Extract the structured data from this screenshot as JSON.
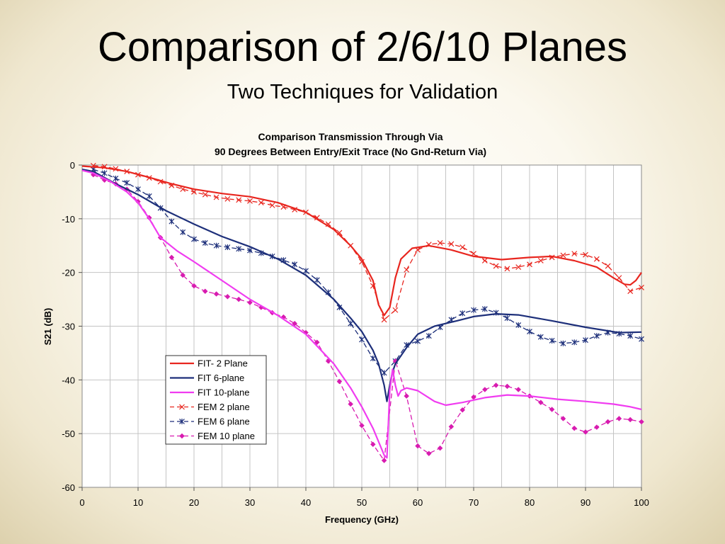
{
  "slide": {
    "title": "Comparison of 2/6/10 Planes",
    "subtitle": "Two Techniques for Validation"
  },
  "chart_data": {
    "type": "line",
    "title": "Comparison Transmission Through Via",
    "subtitle": "90 Degrees Between Entry/Exit Trace (No Gnd-Return Via)",
    "xlabel": "Frequency (GHz)",
    "ylabel": "S21 (dB)",
    "xlim": [
      0,
      100
    ],
    "ylim": [
      -60,
      0
    ],
    "xticks": [
      0,
      10,
      20,
      30,
      40,
      50,
      60,
      70,
      80,
      90,
      100
    ],
    "yticks": [
      0,
      -10,
      -20,
      -30,
      -40,
      -50,
      -60
    ],
    "grid": true,
    "legend_position": "lower-left inside plot",
    "series": [
      {
        "name": "FIT- 2 Plane",
        "color": "#e8261f",
        "style": "solid",
        "marker": "none",
        "points": [
          [
            0,
            -0.2
          ],
          [
            4,
            -0.5
          ],
          [
            8,
            -1.2
          ],
          [
            12,
            -2.3
          ],
          [
            16,
            -3.5
          ],
          [
            20,
            -4.5
          ],
          [
            25,
            -5.3
          ],
          [
            30,
            -5.9
          ],
          [
            35,
            -7
          ],
          [
            40,
            -8.8
          ],
          [
            45,
            -12
          ],
          [
            48,
            -15
          ],
          [
            50,
            -17.5
          ],
          [
            52,
            -21.5
          ],
          [
            53,
            -26
          ],
          [
            54,
            -28
          ],
          [
            55,
            -26.5
          ],
          [
            56,
            -21
          ],
          [
            57,
            -17.5
          ],
          [
            59,
            -15.5
          ],
          [
            62,
            -15
          ],
          [
            66,
            -15.8
          ],
          [
            70,
            -17
          ],
          [
            75,
            -17.6
          ],
          [
            80,
            -17.2
          ],
          [
            84,
            -17
          ],
          [
            88,
            -17.8
          ],
          [
            92,
            -19
          ],
          [
            95,
            -21
          ],
          [
            97,
            -22.2
          ],
          [
            98,
            -22.3
          ],
          [
            99,
            -21.5
          ],
          [
            100,
            -20
          ]
        ]
      },
      {
        "name": "FIT 6-plane",
        "color": "#1d2f7a",
        "style": "solid",
        "marker": "none",
        "points": [
          [
            0,
            -0.8
          ],
          [
            2,
            -1.2
          ],
          [
            6,
            -3.5
          ],
          [
            10,
            -5.5
          ],
          [
            15,
            -8.5
          ],
          [
            20,
            -11
          ],
          [
            25,
            -13.3
          ],
          [
            30,
            -15.2
          ],
          [
            35,
            -17.5
          ],
          [
            40,
            -20.5
          ],
          [
            45,
            -25
          ],
          [
            48,
            -28.5
          ],
          [
            50,
            -31
          ],
          [
            52,
            -34.5
          ],
          [
            53,
            -37
          ],
          [
            54,
            -41
          ],
          [
            54.5,
            -44
          ],
          [
            55,
            -41
          ],
          [
            55.5,
            -38.5
          ],
          [
            56,
            -37
          ],
          [
            57,
            -35.5
          ],
          [
            58,
            -34
          ],
          [
            60,
            -31.5
          ],
          [
            63,
            -30
          ],
          [
            67,
            -29
          ],
          [
            70,
            -28.2
          ],
          [
            74,
            -27.7
          ],
          [
            78,
            -27.9
          ],
          [
            84,
            -29
          ],
          [
            90,
            -30.2
          ],
          [
            96,
            -31.2
          ],
          [
            100,
            -31.1
          ]
        ]
      },
      {
        "name": "FIT 10-plane",
        "color": "#f03cf0",
        "style": "solid",
        "marker": "none",
        "points": [
          [
            0,
            -1
          ],
          [
            2,
            -1.5
          ],
          [
            5,
            -3
          ],
          [
            8,
            -5
          ],
          [
            10,
            -7
          ],
          [
            12,
            -10
          ],
          [
            14,
            -13.5
          ],
          [
            17,
            -16
          ],
          [
            20,
            -18
          ],
          [
            25,
            -21.5
          ],
          [
            30,
            -25
          ],
          [
            35,
            -28
          ],
          [
            40,
            -31.5
          ],
          [
            45,
            -37
          ],
          [
            48,
            -41.5
          ],
          [
            50,
            -45
          ],
          [
            52,
            -49
          ],
          [
            53,
            -51.5
          ],
          [
            54,
            -54
          ],
          [
            54.5,
            -54.5
          ],
          [
            55,
            -42
          ],
          [
            55.5,
            -38
          ],
          [
            56,
            -41
          ],
          [
            56.5,
            -43
          ],
          [
            57,
            -42
          ],
          [
            58,
            -41.5
          ],
          [
            60,
            -42
          ],
          [
            63,
            -44
          ],
          [
            65,
            -44.7
          ],
          [
            68,
            -44.2
          ],
          [
            72,
            -43.3
          ],
          [
            76,
            -42.8
          ],
          [
            80,
            -43
          ],
          [
            85,
            -43.6
          ],
          [
            90,
            -44
          ],
          [
            95,
            -44.5
          ],
          [
            98,
            -45
          ],
          [
            100,
            -45.5
          ]
        ]
      },
      {
        "name": "FEM 2 plane",
        "color": "#e8261f",
        "style": "dashed",
        "marker": "x",
        "points": [
          [
            2,
            -0.1
          ],
          [
            4,
            -0.3
          ],
          [
            6,
            -0.7
          ],
          [
            8,
            -1.2
          ],
          [
            10,
            -1.8
          ],
          [
            12,
            -2.4
          ],
          [
            14,
            -3.1
          ],
          [
            16,
            -3.8
          ],
          [
            18,
            -4.5
          ],
          [
            20,
            -5
          ],
          [
            22,
            -5.5
          ],
          [
            24,
            -6
          ],
          [
            26,
            -6.3
          ],
          [
            28,
            -6.5
          ],
          [
            30,
            -6.7
          ],
          [
            32,
            -7
          ],
          [
            34,
            -7.5
          ],
          [
            36,
            -7.8
          ],
          [
            38,
            -8.3
          ],
          [
            40,
            -8.8
          ],
          [
            42,
            -9.8
          ],
          [
            44,
            -11
          ],
          [
            46,
            -12.6
          ],
          [
            48,
            -15
          ],
          [
            50,
            -18
          ],
          [
            52,
            -22.5
          ],
          [
            54,
            -28.8
          ],
          [
            56,
            -27
          ],
          [
            58,
            -19.5
          ],
          [
            60,
            -15.8
          ],
          [
            62,
            -14.8
          ],
          [
            64,
            -14.5
          ],
          [
            66,
            -14.7
          ],
          [
            68,
            -15.3
          ],
          [
            70,
            -16.5
          ],
          [
            72,
            -17.8
          ],
          [
            74,
            -18.8
          ],
          [
            76,
            -19.3
          ],
          [
            78,
            -19
          ],
          [
            80,
            -18.5
          ],
          [
            82,
            -17.8
          ],
          [
            84,
            -17.2
          ],
          [
            86,
            -16.8
          ],
          [
            88,
            -16.5
          ],
          [
            90,
            -16.7
          ],
          [
            92,
            -17.5
          ],
          [
            94,
            -18.8
          ],
          [
            96,
            -21
          ],
          [
            98,
            -23.5
          ],
          [
            100,
            -22.8
          ]
        ]
      },
      {
        "name": "FEM 6 plane",
        "color": "#1d2f7a",
        "style": "dashed",
        "marker": "asterisk",
        "points": [
          [
            2,
            -0.8
          ],
          [
            4,
            -1.5
          ],
          [
            6,
            -2.5
          ],
          [
            8,
            -3.3
          ],
          [
            10,
            -4.5
          ],
          [
            12,
            -5.8
          ],
          [
            14,
            -8
          ],
          [
            16,
            -10.5
          ],
          [
            18,
            -12.5
          ],
          [
            20,
            -13.8
          ],
          [
            22,
            -14.5
          ],
          [
            24,
            -15
          ],
          [
            26,
            -15.3
          ],
          [
            28,
            -15.6
          ],
          [
            30,
            -15.9
          ],
          [
            32,
            -16.4
          ],
          [
            34,
            -17
          ],
          [
            36,
            -17.7
          ],
          [
            38,
            -18.5
          ],
          [
            40,
            -19.7
          ],
          [
            42,
            -21.4
          ],
          [
            44,
            -23.7
          ],
          [
            46,
            -26.5
          ],
          [
            48,
            -29.5
          ],
          [
            50,
            -32.5
          ],
          [
            52,
            -36
          ],
          [
            54,
            -38.7
          ],
          [
            56,
            -36.5
          ],
          [
            58,
            -33.5
          ],
          [
            60,
            -32.8
          ],
          [
            62,
            -31.8
          ],
          [
            64,
            -30.2
          ],
          [
            66,
            -28.8
          ],
          [
            68,
            -27.6
          ],
          [
            70,
            -27
          ],
          [
            72,
            -26.8
          ],
          [
            74,
            -27.5
          ],
          [
            76,
            -28.5
          ],
          [
            78,
            -29.8
          ],
          [
            80,
            -31
          ],
          [
            82,
            -32
          ],
          [
            84,
            -32.7
          ],
          [
            86,
            -33.2
          ],
          [
            88,
            -33
          ],
          [
            90,
            -32.6
          ],
          [
            92,
            -31.8
          ],
          [
            94,
            -31.2
          ],
          [
            96,
            -31.4
          ],
          [
            98,
            -31.8
          ],
          [
            100,
            -32.4
          ]
        ]
      },
      {
        "name": "FEM 10 plane",
        "color": "#d81bb0",
        "style": "dashed",
        "marker": "diamond",
        "points": [
          [
            2,
            -1.8
          ],
          [
            4,
            -2.8
          ],
          [
            6,
            -3.5
          ],
          [
            8,
            -4.5
          ],
          [
            10,
            -6.8
          ],
          [
            12,
            -9.8
          ],
          [
            14,
            -13.5
          ],
          [
            16,
            -17.2
          ],
          [
            18,
            -20.5
          ],
          [
            20,
            -22.5
          ],
          [
            22,
            -23.5
          ],
          [
            24,
            -24
          ],
          [
            26,
            -24.5
          ],
          [
            28,
            -25
          ],
          [
            30,
            -25.6
          ],
          [
            32,
            -26.5
          ],
          [
            34,
            -27.5
          ],
          [
            36,
            -28.3
          ],
          [
            38,
            -29.5
          ],
          [
            40,
            -31.2
          ],
          [
            42,
            -33
          ],
          [
            44,
            -36.5
          ],
          [
            46,
            -40.3
          ],
          [
            48,
            -44.5
          ],
          [
            50,
            -48.5
          ],
          [
            52,
            -52
          ],
          [
            54,
            -55
          ],
          [
            56,
            -36.5
          ],
          [
            58,
            -43
          ],
          [
            60,
            -52.3
          ],
          [
            62,
            -53.7
          ],
          [
            64,
            -52.7
          ],
          [
            66,
            -48.7
          ],
          [
            68,
            -45.6
          ],
          [
            70,
            -43.2
          ],
          [
            72,
            -41.8
          ],
          [
            74,
            -41
          ],
          [
            76,
            -41.2
          ],
          [
            78,
            -41.8
          ],
          [
            80,
            -43
          ],
          [
            82,
            -44.2
          ],
          [
            84,
            -45.5
          ],
          [
            86,
            -47.2
          ],
          [
            88,
            -49
          ],
          [
            90,
            -49.7
          ],
          [
            92,
            -48.8
          ],
          [
            94,
            -47.8
          ],
          [
            96,
            -47.2
          ],
          [
            98,
            -47.4
          ],
          [
            100,
            -47.8
          ]
        ]
      }
    ]
  }
}
